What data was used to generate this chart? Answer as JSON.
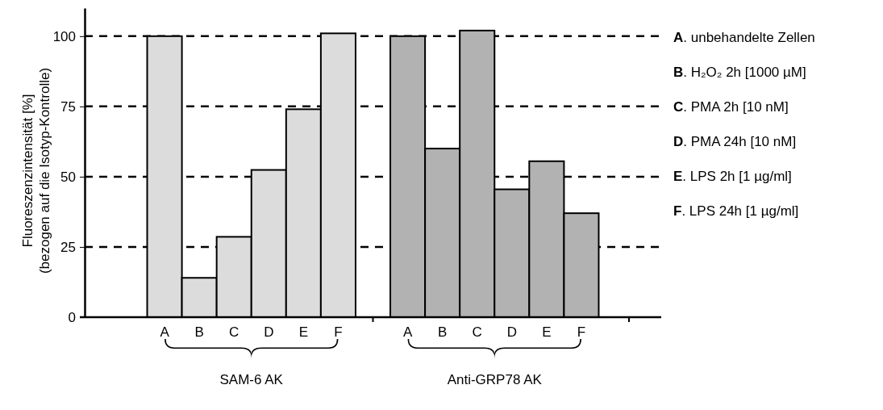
{
  "chart_data": {
    "type": "bar",
    "ylabel": "Fluoreszenzintensität [%]\n(bezogen auf die Isotyp-Kontrolle)",
    "categories": [
      "A",
      "B",
      "C",
      "D",
      "E",
      "F",
      null,
      "A",
      "B",
      "C",
      "D",
      "E",
      "F"
    ],
    "values": [
      100,
      14,
      28.6,
      52.4,
      74,
      101,
      null,
      100,
      60,
      102,
      45.5,
      55.5,
      37
    ],
    "colors": [
      "#dcdcdc",
      "#dcdcdc",
      "#dcdcdc",
      "#dcdcdc",
      "#dcdcdc",
      "#dcdcdc",
      null,
      "#b2b2b2",
      "#b2b2b2",
      "#b2b2b2",
      "#b2b2b2",
      "#b2b2b2",
      "#b2b2b2"
    ],
    "ylim": [
      0,
      110
    ],
    "yticks": [
      0,
      25,
      50,
      75,
      100
    ],
    "grid": "y",
    "line_style": "dashed",
    "annotations": [
      "SAM-6 AK",
      "Anti-GRP78 AK",
      "A. unbehandelte Zellen",
      "B. H₂O₂ 2h [1000 µM]",
      "C. PMA 2h [10 nM]",
      "D. PMA 24h [10 nM]",
      "E. LPS 2h [1 µg/ml]",
      "F. LPS 24h [1 µg/ml]"
    ]
  }
}
